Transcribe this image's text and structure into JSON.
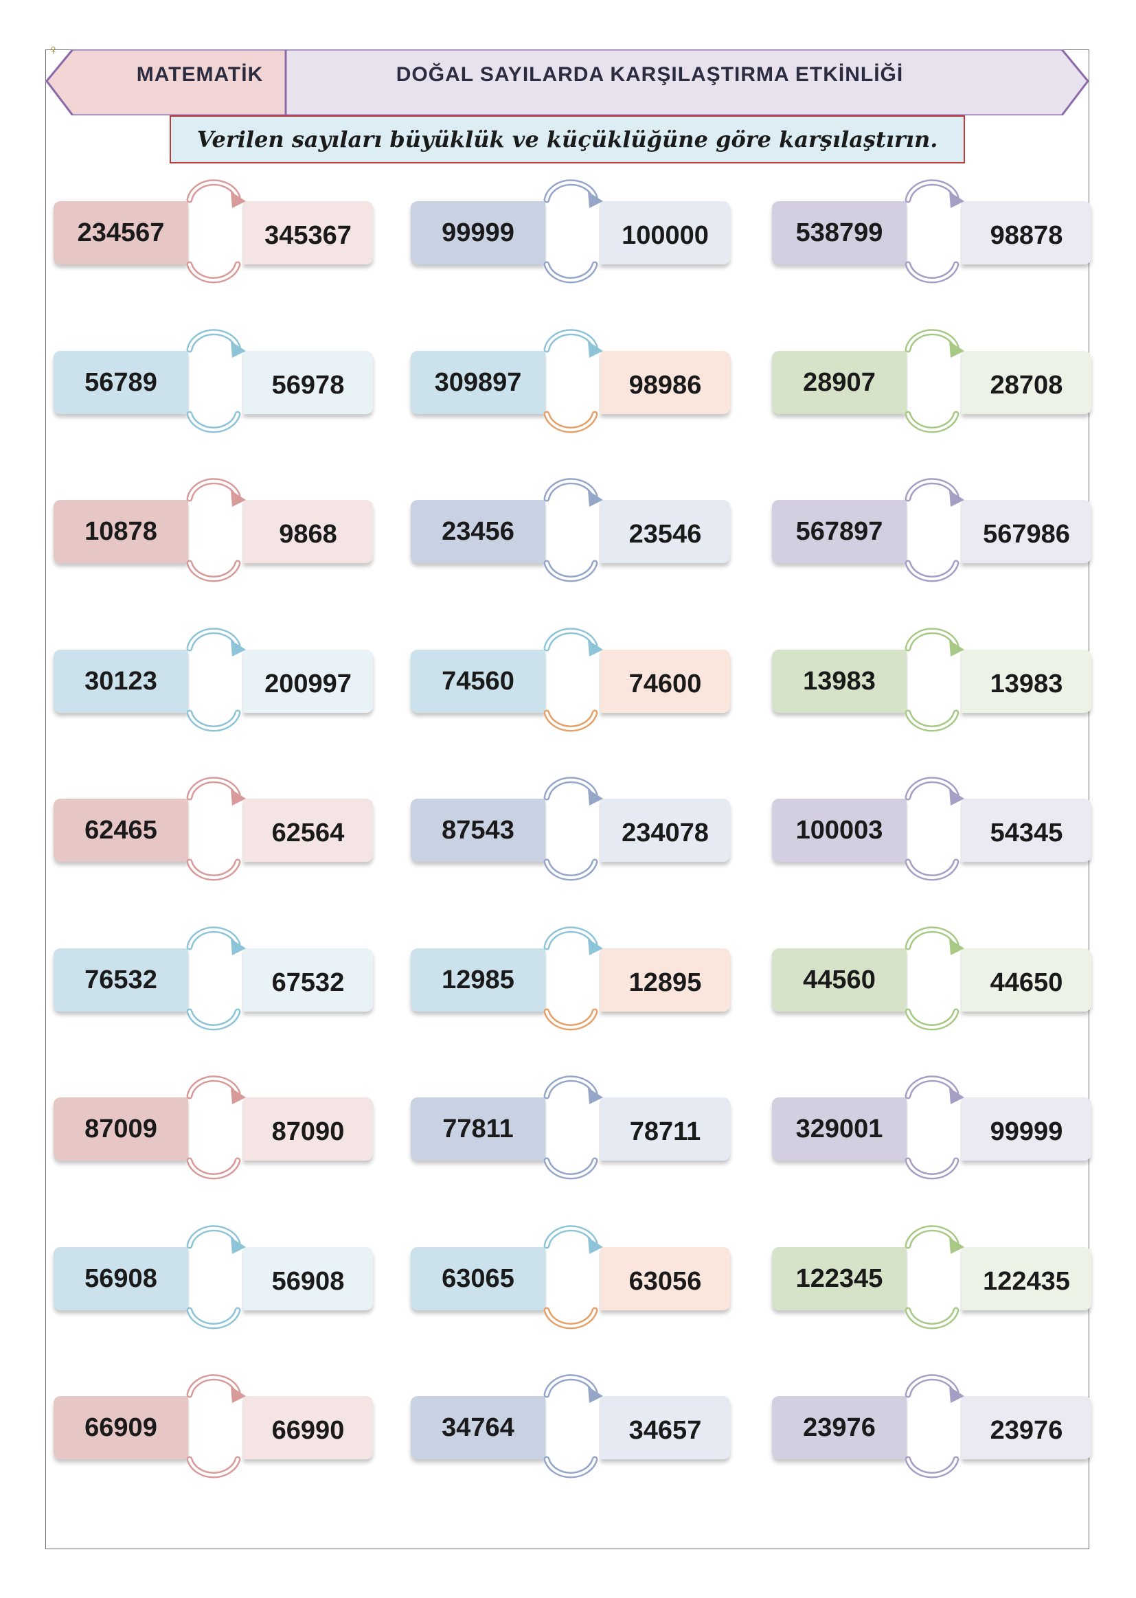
{
  "header": {
    "subject": "MATEMATİK",
    "title": "DOĞAL SAYILARDA KARŞILAŞTIRMA ETKİNLİĞİ",
    "instruction": "Verilen sayıları büyüklük ve küçüklüğüne göre karşılaştırın."
  },
  "themes": {
    "red": {
      "left": "#e7c6c6",
      "right": "#f5e4e4",
      "arc": "#d99a9a"
    },
    "blue": {
      "left": "#cbe1eb",
      "right": "#e9f2f6",
      "arc": "#8ec4d8"
    },
    "navy": {
      "left": "#c9d2e3",
      "right": "#e6ebf3",
      "arc": "#95a6c9"
    },
    "purple": {
      "left": "#d3cfe0",
      "right": "#ebe9f2",
      "arc": "#a69ec4"
    },
    "green": {
      "left": "#d7e3c8",
      "right": "#edf2e6",
      "arc": "#a8c985"
    },
    "peach": {
      "left": "#cbe1eb",
      "right": "#fbe6de",
      "arc": "#8ec4d8",
      "arc_bottom": "#e6a06a"
    }
  },
  "rows": [
    [
      {
        "left": "234567",
        "right": "345367",
        "theme": "red"
      },
      {
        "left": "99999",
        "right": "100000",
        "theme": "navy"
      },
      {
        "left": "538799",
        "right": "98878",
        "theme": "purple"
      }
    ],
    [
      {
        "left": "56789",
        "right": "56978",
        "theme": "blue"
      },
      {
        "left": "309897",
        "right": "98986",
        "theme": "peach"
      },
      {
        "left": "28907",
        "right": "28708",
        "theme": "green"
      }
    ],
    [
      {
        "left": "10878",
        "right": "9868",
        "theme": "red"
      },
      {
        "left": "23456",
        "right": "23546",
        "theme": "navy"
      },
      {
        "left": "567897",
        "right": "567986",
        "theme": "purple"
      }
    ],
    [
      {
        "left": "30123",
        "right": "200997",
        "theme": "blue"
      },
      {
        "left": "74560",
        "right": "74600",
        "theme": "peach"
      },
      {
        "left": "13983",
        "right": "13983",
        "theme": "green"
      }
    ],
    [
      {
        "left": "62465",
        "right": "62564",
        "theme": "red"
      },
      {
        "left": "87543",
        "right": "234078",
        "theme": "navy"
      },
      {
        "left": "100003",
        "right": "54345",
        "theme": "purple"
      }
    ],
    [
      {
        "left": "76532",
        "right": "67532",
        "theme": "blue"
      },
      {
        "left": "12985",
        "right": "12895",
        "theme": "peach"
      },
      {
        "left": "44560",
        "right": "44650",
        "theme": "green"
      }
    ],
    [
      {
        "left": "87009",
        "right": "87090",
        "theme": "red"
      },
      {
        "left": "77811",
        "right": "78711",
        "theme": "navy"
      },
      {
        "left": "329001",
        "right": "99999",
        "theme": "purple"
      }
    ],
    [
      {
        "left": "56908",
        "right": "56908",
        "theme": "blue"
      },
      {
        "left": "63065",
        "right": "63056",
        "theme": "peach"
      },
      {
        "left": "122345",
        "right": "122435",
        "theme": "green"
      }
    ],
    [
      {
        "left": "66909",
        "right": "66990",
        "theme": "red"
      },
      {
        "left": "34764",
        "right": "34657",
        "theme": "navy"
      },
      {
        "left": "23976",
        "right": "23976",
        "theme": "purple"
      }
    ]
  ]
}
